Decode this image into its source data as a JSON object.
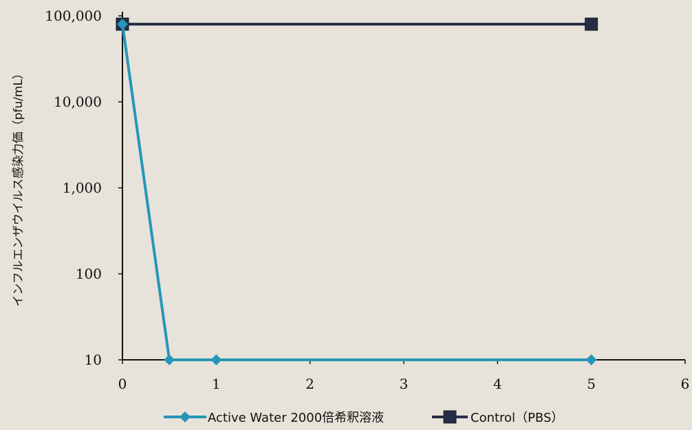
{
  "chart_data": {
    "type": "line",
    "title": "",
    "xlabel": "",
    "ylabel": "インフルエンザウイルス感染力価（pfu/mL）",
    "y_scale": "log",
    "xlim": [
      0,
      6
    ],
    "ylim": [
      10,
      100000
    ],
    "x_ticks": [
      "0",
      "1",
      "2",
      "3",
      "4",
      "5",
      "6"
    ],
    "y_ticks": [
      "10",
      "100",
      "1,000",
      "10,000",
      "100,000"
    ],
    "grid": false,
    "legend_position": "bottom",
    "series": [
      {
        "name": "Active Water 2000倍希釈溶液",
        "color": "#2596b8",
        "marker": "diamond",
        "x": [
          0,
          0.5,
          1,
          5
        ],
        "y": [
          80000,
          10,
          10,
          10
        ]
      },
      {
        "name": "Control（PBS）",
        "color": "#262c44",
        "marker": "square",
        "x": [
          0,
          5
        ],
        "y": [
          80000,
          80000
        ]
      }
    ]
  }
}
